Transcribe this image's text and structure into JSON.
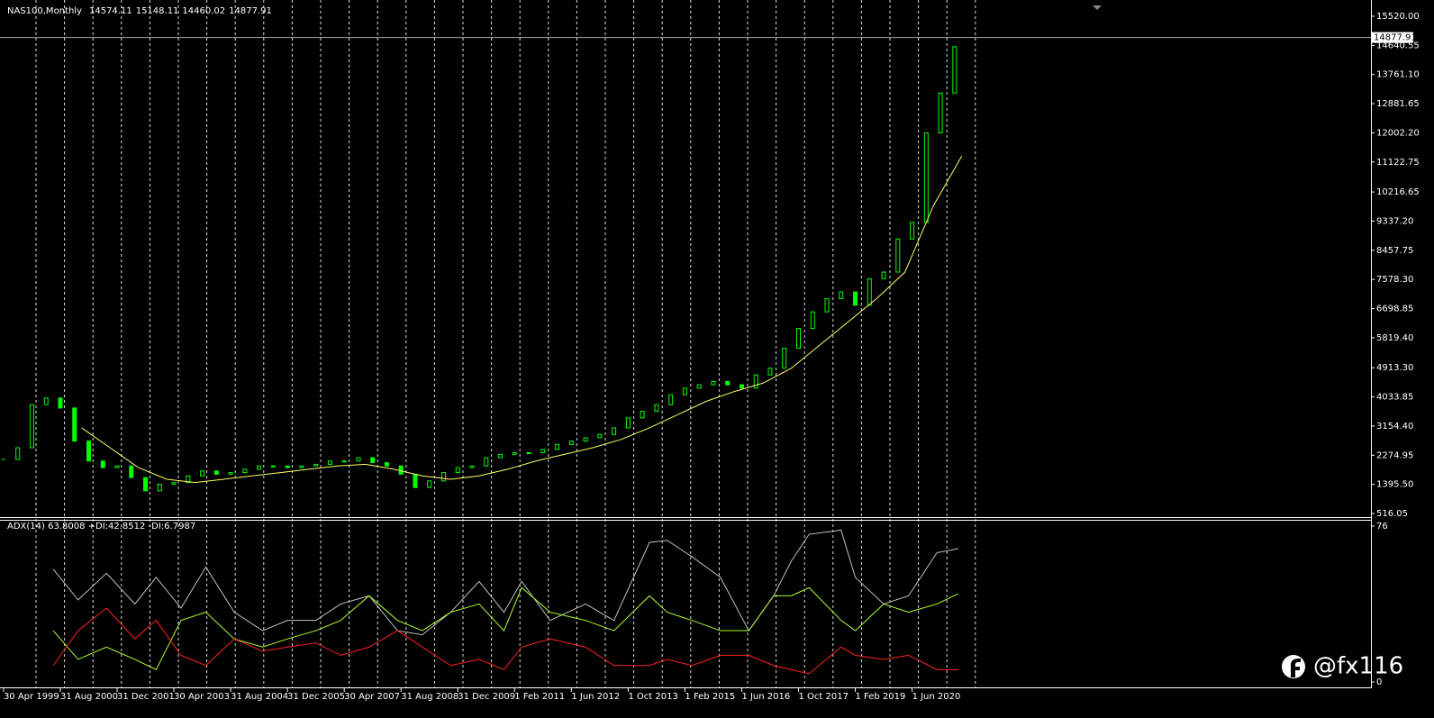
{
  "chart_data": [
    {
      "type": "candlestick",
      "title": "NAS100,Monthly",
      "last_bar": {
        "open": 14574.11,
        "high": 15148.11,
        "low": 14460.02,
        "close": 14877.91
      },
      "x": [
        0,
        4,
        8,
        12,
        16,
        20,
        24,
        28,
        32,
        36,
        40,
        44,
        48,
        52,
        56,
        60,
        64,
        68,
        72,
        76,
        80,
        84,
        88,
        92,
        96,
        100,
        104,
        108,
        112,
        116,
        120,
        124,
        128,
        132,
        136,
        140,
        144,
        148,
        152,
        156,
        160,
        164,
        168,
        172,
        176,
        180,
        184,
        188,
        192,
        196,
        200,
        204,
        208,
        212,
        216,
        220,
        224,
        228,
        232,
        236,
        240,
        244,
        248,
        252,
        256,
        260,
        264,
        268
      ],
      "values": [
        2150,
        2500,
        3800,
        4000,
        3700,
        2700,
        2100,
        1900,
        1950,
        1600,
        1200,
        1400,
        1450,
        1650,
        1800,
        1700,
        1750,
        1850,
        1950,
        1950,
        1900,
        1950,
        2000,
        2100,
        2100,
        2200,
        2050,
        1950,
        1700,
        1300,
        1500,
        1750,
        1900,
        1950,
        2200,
        2300,
        2350,
        2350,
        2450,
        2600,
        2700,
        2800,
        2900,
        3100,
        3400,
        3600,
        3800,
        4100,
        4300,
        4400,
        4500,
        4400,
        4300,
        4700,
        4900,
        5500,
        6100,
        6600,
        7000,
        7200,
        6800,
        7600,
        7800,
        8800,
        9300,
        12000,
        13200,
        14600
      ],
      "color": "#00ff00",
      "ma": {
        "x": [
          22,
          30,
          38,
          46,
          54,
          62,
          70,
          78,
          86,
          94,
          102,
          110,
          118,
          126,
          134,
          142,
          150,
          158,
          166,
          174,
          182,
          190,
          198,
          206,
          214,
          222,
          230,
          238,
          246,
          254,
          262,
          270
        ],
        "values": [
          3100,
          2500,
          1900,
          1550,
          1450,
          1550,
          1650,
          1750,
          1850,
          1950,
          2000,
          1850,
          1650,
          1550,
          1650,
          1850,
          2100,
          2300,
          2500,
          2750,
          3100,
          3500,
          3900,
          4200,
          4450,
          4900,
          5600,
          6300,
          7000,
          7800,
          9800,
          11300
        ],
        "color": "#ffff66"
      },
      "xlim": [
        -1,
        385.3
      ],
      "ylim": [
        380,
        15955
      ],
      "xticks": [
        {
          "value": 0,
          "label": "30 Apr 1999"
        },
        {
          "value": 16,
          "label": "31 Aug 2000"
        },
        {
          "value": 32,
          "label": "31 Dec 2001"
        },
        {
          "value": 48,
          "label": "30 Apr 2003"
        },
        {
          "value": 64,
          "label": "31 Aug 2004"
        },
        {
          "value": 80,
          "label": "31 Dec 2005"
        },
        {
          "value": 96,
          "label": "30 Apr 2007"
        },
        {
          "value": 112,
          "label": "31 Aug 2008"
        },
        {
          "value": 128,
          "label": "31 Dec 2009"
        },
        {
          "value": 144,
          "label": "1 Feb 2011"
        },
        {
          "value": 160,
          "label": "1 Jun 2012"
        },
        {
          "value": 176,
          "label": "1 Oct 2013"
        },
        {
          "value": 192,
          "label": "1 Feb 2015"
        },
        {
          "value": 208,
          "label": "1 Jun 2016"
        },
        {
          "value": 224,
          "label": "1 Oct 2017"
        },
        {
          "value": 240,
          "label": "1 Feb 2019"
        },
        {
          "value": 256,
          "label": "1 Jun 2020"
        }
      ],
      "yticks": [
        {
          "value": 516.05,
          "label": "516.05"
        },
        {
          "value": 1395.5,
          "label": "1395.50"
        },
        {
          "value": 2274.95,
          "label": "2274.95"
        },
        {
          "value": 3154.4,
          "label": "3154.40"
        },
        {
          "value": 4033.85,
          "label": "4033.85"
        },
        {
          "value": 4913.3,
          "label": "4913.30"
        },
        {
          "value": 5819.4,
          "label": "5819.40"
        },
        {
          "value": 6698.85,
          "label": "6698.85"
        },
        {
          "value": 7578.3,
          "label": "7578.30"
        },
        {
          "value": 8457.75,
          "label": "8457.75"
        },
        {
          "value": 9337.2,
          "label": "9337.20"
        },
        {
          "value": 10216.65,
          "label": "10216.65"
        },
        {
          "value": 11122.75,
          "label": "11122.75"
        },
        {
          "value": 12002.2,
          "label": "12002.20"
        },
        {
          "value": 12881.65,
          "label": "12881.65"
        },
        {
          "value": 13761.1,
          "label": "13761.10"
        },
        {
          "value": 14640.55,
          "label": "14640.55"
        },
        {
          "value": 15520,
          "label": "15520.00"
        }
      ]
    },
    {
      "type": "line",
      "title": "ADX(14) 63.8008 +DI:42.8512 -DI:6.7987",
      "x": [
        14,
        21,
        29,
        37,
        43,
        50,
        57,
        65,
        73,
        80,
        88,
        95,
        103,
        111,
        118,
        126,
        134,
        141,
        146,
        154,
        164,
        172,
        182,
        187,
        194,
        202,
        210,
        217,
        222,
        227,
        236,
        240,
        248,
        255,
        263,
        269
      ],
      "series": [
        {
          "color": "#c0c0c0",
          "values": [
            55,
            40,
            53,
            38,
            51,
            36,
            56,
            34,
            25,
            30,
            30,
            38,
            42,
            25,
            23,
            34,
            49,
            34,
            49,
            30,
            38,
            30,
            68,
            69,
            61,
            51,
            25,
            42,
            59,
            72,
            74,
            51,
            38,
            42,
            63,
            65
          ]
        },
        {
          "color": "#adff2f",
          "values": [
            25,
            11,
            17,
            11,
            6,
            30,
            34,
            21,
            17,
            21,
            25,
            30,
            42,
            30,
            25,
            34,
            38,
            25,
            46,
            34,
            30,
            25,
            42,
            34,
            30,
            25,
            25,
            42,
            42,
            46,
            30,
            25,
            38,
            34,
            38,
            43
          ]
        },
        {
          "color": "#ff2020",
          "values": [
            8,
            25,
            36,
            21,
            30,
            13,
            8,
            21,
            15,
            17,
            19,
            13,
            17,
            25,
            17,
            8,
            11,
            6,
            17,
            21,
            17,
            8,
            8,
            11,
            8,
            13,
            13,
            8,
            6,
            4,
            17,
            13,
            11,
            13,
            6,
            6
          ]
        }
      ],
      "xlim": [
        -1,
        385.3
      ],
      "ylim": [
        -2.2,
        78.6
      ],
      "yticks": [
        0,
        76
      ]
    }
  ],
  "watermark": "@fx116"
}
